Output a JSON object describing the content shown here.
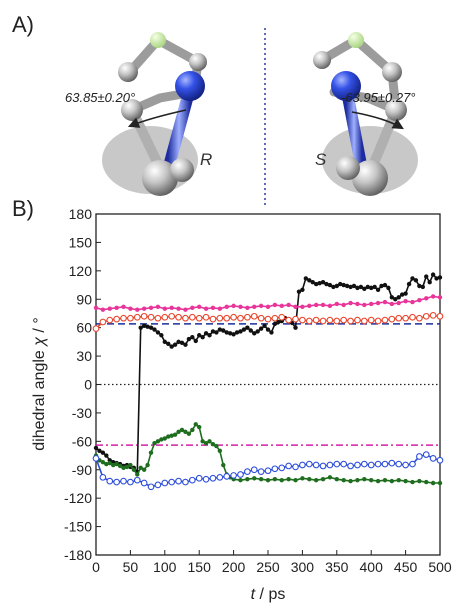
{
  "panel_a": {
    "label": "A)",
    "angle_r": "63.85±0.20°",
    "angle_s": "-63.95±0.27°",
    "enantiomer_r": "R",
    "enantiomer_s": "S"
  },
  "panel_b": {
    "label": "B)"
  },
  "colors": {
    "black_series": "#111111",
    "magenta_series": "#e8359a",
    "red_series": "#e8472e",
    "green_series": "#1f6e1f",
    "blue_series": "#2f4fd9",
    "ref_positive": "#1a2f9c",
    "ref_negative": "#d21fa6",
    "zero_line": "#222222"
  },
  "chart_data": {
    "type": "line",
    "title": "",
    "xlabel_italic": "t",
    "xlabel_unit": " / ps",
    "ylabel_text": "dihedral angle ",
    "ylabel_symbol": "χ",
    "ylabel_unit": " / °",
    "xlim": [
      0,
      500
    ],
    "ylim": [
      -180,
      180
    ],
    "xticks": [
      0,
      50,
      100,
      150,
      200,
      250,
      300,
      350,
      400,
      450,
      500
    ],
    "yticks": [
      -180,
      -150,
      -120,
      -90,
      -60,
      -30,
      0,
      30,
      60,
      90,
      120,
      150,
      180
    ],
    "reference_lines": [
      {
        "y": 64,
        "style": "dashed",
        "color_key": "ref_positive"
      },
      {
        "y": -64,
        "style": "dashdot",
        "color_key": "ref_negative"
      },
      {
        "y": 0,
        "style": "dotted",
        "color_key": "zero_line"
      }
    ],
    "series": [
      {
        "color_key": "black_series",
        "marker": "filled",
        "x": [
          0,
          5,
          10,
          15,
          20,
          25,
          30,
          35,
          40,
          45,
          50,
          55,
          60,
          65,
          70,
          75,
          80,
          85,
          90,
          95,
          100,
          105,
          110,
          115,
          120,
          125,
          130,
          135,
          140,
          145,
          150,
          155,
          160,
          165,
          170,
          175,
          180,
          185,
          190,
          195,
          200,
          205,
          210,
          215,
          220,
          225,
          230,
          235,
          240,
          245,
          250,
          255,
          260,
          265,
          270,
          275,
          280,
          285,
          290,
          295,
          300,
          305,
          310,
          315,
          320,
          325,
          330,
          335,
          340,
          345,
          350,
          355,
          360,
          365,
          370,
          375,
          380,
          385,
          390,
          395,
          400,
          405,
          410,
          415,
          420,
          425,
          430,
          435,
          440,
          445,
          450,
          455,
          460,
          465,
          470,
          475,
          480,
          485,
          490,
          495,
          500
        ],
        "y": [
          -67,
          -70,
          -72,
          -75,
          -80,
          -82,
          -83,
          -84,
          -86,
          -85,
          -87,
          -88,
          -92,
          60,
          62,
          61,
          60,
          58,
          55,
          52,
          45,
          43,
          40,
          42,
          45,
          44,
          42,
          48,
          50,
          46,
          52,
          50,
          54,
          52,
          56,
          55,
          58,
          57,
          55,
          54,
          53,
          55,
          56,
          58,
          60,
          57,
          54,
          56,
          59,
          62,
          58,
          55,
          64,
          66,
          67,
          70,
          68,
          65,
          60,
          98,
          100,
          112,
          110,
          108,
          106,
          107,
          108,
          106,
          105,
          103,
          104,
          106,
          105,
          104,
          103,
          104,
          102,
          103,
          101,
          103,
          102,
          103,
          100,
          104,
          105,
          102,
          92,
          90,
          92,
          95,
          96,
          106,
          112,
          110,
          104,
          103,
          114,
          108,
          116,
          112,
          113
        ]
      },
      {
        "color_key": "magenta_series",
        "marker": "filled",
        "x": [
          0,
          10,
          20,
          30,
          40,
          50,
          60,
          70,
          80,
          90,
          100,
          110,
          120,
          130,
          140,
          150,
          160,
          170,
          180,
          190,
          200,
          210,
          220,
          230,
          240,
          250,
          260,
          270,
          280,
          290,
          300,
          310,
          320,
          330,
          340,
          350,
          360,
          370,
          380,
          390,
          400,
          410,
          420,
          430,
          440,
          450,
          460,
          470,
          480,
          490,
          500
        ],
        "y": [
          81,
          79,
          80,
          81,
          82,
          80,
          79,
          80,
          81,
          82,
          80,
          81,
          80,
          79,
          81,
          82,
          80,
          81,
          80,
          82,
          83,
          82,
          81,
          82,
          83,
          82,
          84,
          83,
          84,
          82,
          82,
          83,
          84,
          84,
          83,
          85,
          84,
          86,
          85,
          84,
          85,
          86,
          87,
          85,
          86,
          88,
          87,
          89,
          91,
          93,
          92
        ]
      },
      {
        "color_key": "red_series",
        "marker": "open",
        "x": [
          0,
          10,
          20,
          30,
          40,
          50,
          60,
          70,
          80,
          90,
          100,
          110,
          120,
          130,
          140,
          150,
          160,
          170,
          180,
          190,
          200,
          210,
          220,
          230,
          240,
          250,
          260,
          270,
          280,
          290,
          300,
          310,
          320,
          330,
          340,
          350,
          360,
          370,
          380,
          390,
          400,
          410,
          420,
          430,
          440,
          450,
          460,
          470,
          480,
          490,
          500
        ],
        "y": [
          59,
          66,
          68,
          69,
          70,
          70,
          71,
          72,
          71,
          70,
          71,
          72,
          71,
          70,
          71,
          70,
          71,
          69,
          70,
          70,
          71,
          70,
          71,
          72,
          70,
          69,
          70,
          71,
          68,
          69,
          68,
          67,
          68,
          67,
          68,
          67,
          68,
          67,
          68,
          67,
          68,
          67,
          68,
          69,
          70,
          70,
          71,
          70,
          72,
          73,
          72
        ]
      },
      {
        "color_key": "green_series",
        "marker": "filled",
        "x": [
          0,
          5,
          10,
          15,
          20,
          25,
          30,
          35,
          40,
          45,
          50,
          55,
          60,
          65,
          70,
          75,
          80,
          85,
          90,
          95,
          100,
          105,
          110,
          115,
          120,
          125,
          130,
          135,
          140,
          145,
          150,
          155,
          160,
          165,
          170,
          175,
          180,
          185,
          190,
          195,
          200,
          210,
          220,
          230,
          240,
          250,
          260,
          270,
          280,
          290,
          300,
          310,
          320,
          330,
          340,
          350,
          360,
          370,
          380,
          390,
          400,
          410,
          420,
          430,
          440,
          450,
          460,
          470,
          480,
          490,
          500
        ],
        "y": [
          -75,
          -80,
          -82,
          -84,
          -83,
          -85,
          -84,
          -86,
          -88,
          -87,
          -85,
          -90,
          -95,
          -88,
          -90,
          -85,
          -72,
          -62,
          -60,
          -58,
          -57,
          -55,
          -54,
          -53,
          -50,
          -48,
          -50,
          -52,
          -48,
          -42,
          -45,
          -60,
          -62,
          -60,
          -63,
          -65,
          -70,
          -85,
          -95,
          -98,
          -100,
          -101,
          -100,
          -99,
          -100,
          -101,
          -100,
          -101,
          -100,
          -101,
          -99,
          -100,
          -101,
          -100,
          -98,
          -100,
          -101,
          -102,
          -101,
          -100,
          -101,
          -102,
          -101,
          -102,
          -101,
          -102,
          -103,
          -102,
          -103,
          -104,
          -104
        ]
      },
      {
        "color_key": "blue_series",
        "marker": "open",
        "x": [
          0,
          10,
          20,
          30,
          40,
          50,
          60,
          70,
          80,
          90,
          100,
          110,
          120,
          130,
          140,
          150,
          160,
          170,
          180,
          190,
          200,
          210,
          220,
          230,
          240,
          250,
          260,
          270,
          280,
          290,
          300,
          310,
          320,
          330,
          340,
          350,
          360,
          370,
          380,
          390,
          400,
          410,
          420,
          430,
          440,
          450,
          460,
          470,
          480,
          490,
          500
        ],
        "y": [
          -78,
          -98,
          -102,
          -103,
          -102,
          -103,
          -101,
          -104,
          -108,
          -106,
          -104,
          -103,
          -102,
          -103,
          -101,
          -99,
          -100,
          -99,
          -98,
          -97,
          -96,
          -95,
          -92,
          -90,
          -92,
          -91,
          -89,
          -88,
          -86,
          -87,
          -85,
          -84,
          -85,
          -86,
          -85,
          -84,
          -84,
          -86,
          -85,
          -84,
          -85,
          -84,
          -84,
          -83,
          -84,
          -85,
          -84,
          -76,
          -74,
          -78,
          -80
        ]
      }
    ]
  }
}
